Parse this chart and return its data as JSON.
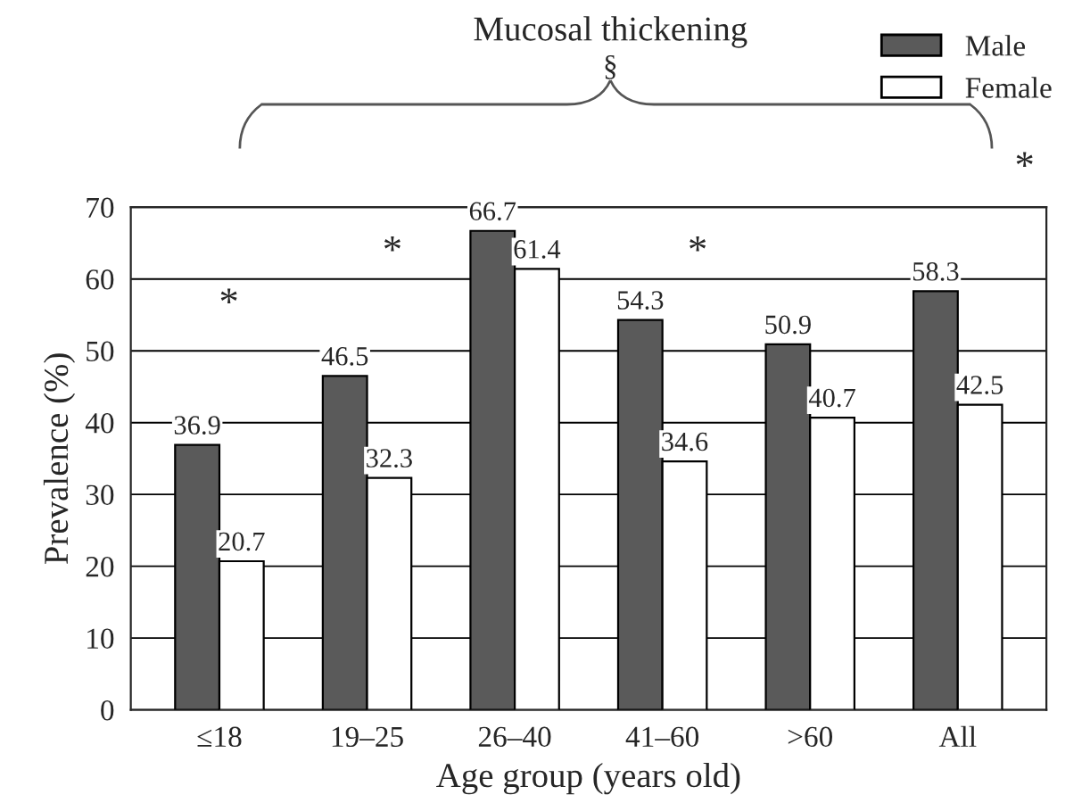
{
  "chart_data": {
    "type": "bar",
    "title": "Mucosal thickening",
    "xlabel": "Age group (years old)",
    "ylabel": "Prevalence (%)",
    "categories": [
      "≤18",
      "19–25",
      "26–40",
      "41–60",
      ">60",
      "All"
    ],
    "series": [
      {
        "name": "Male",
        "color": "#5a5a5a",
        "values": [
          36.9,
          46.5,
          66.7,
          54.3,
          50.9,
          58.3
        ]
      },
      {
        "name": "Female",
        "color": "#ffffff",
        "values": [
          20.7,
          32.3,
          61.4,
          34.6,
          40.7,
          42.5
        ]
      }
    ],
    "ylim": [
      0,
      70
    ],
    "yticks": [
      0,
      10,
      20,
      30,
      40,
      50,
      60,
      70
    ],
    "grid": "y",
    "legend": "top right",
    "data_labels": true,
    "annotations": [
      "§",
      "*",
      "*",
      "*",
      "*"
    ]
  }
}
